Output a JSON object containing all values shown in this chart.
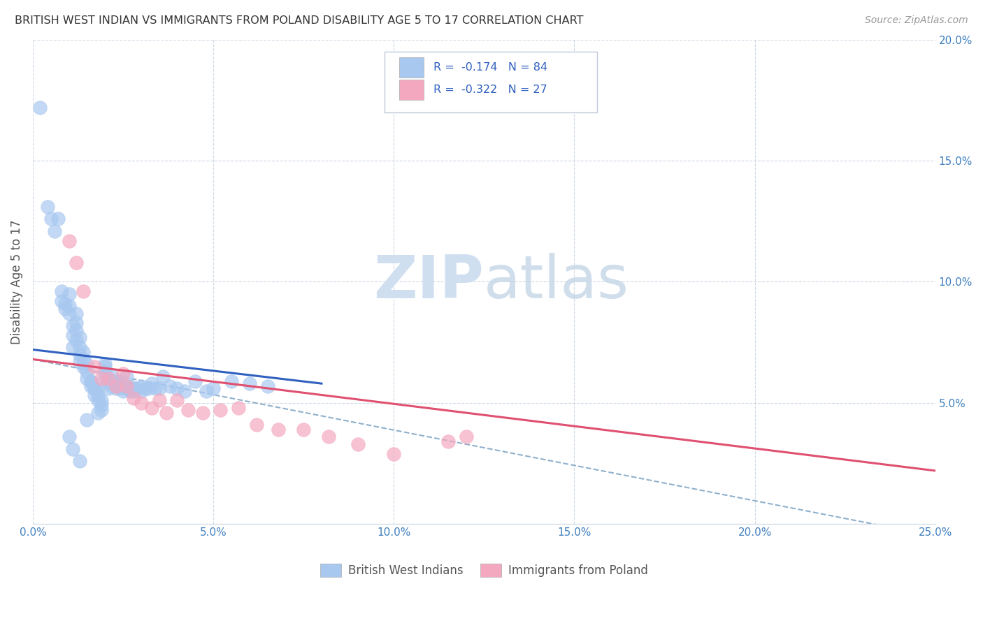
{
  "title": "BRITISH WEST INDIAN VS IMMIGRANTS FROM POLAND DISABILITY AGE 5 TO 17 CORRELATION CHART",
  "source": "Source: ZipAtlas.com",
  "ylabel": "Disability Age 5 to 17",
  "xlim": [
    0.0,
    0.25
  ],
  "ylim": [
    0.0,
    0.2
  ],
  "xticks": [
    0.0,
    0.05,
    0.1,
    0.15,
    0.2,
    0.25
  ],
  "yticks": [
    0.0,
    0.05,
    0.1,
    0.15,
    0.2
  ],
  "blue_R": -0.174,
  "blue_N": 84,
  "pink_R": -0.322,
  "pink_N": 27,
  "blue_color": "#A8C8F0",
  "pink_color": "#F4A8C0",
  "blue_line_color": "#3060C0",
  "pink_line_color": "#E05070",
  "dashed_line_color": "#90B0CC",
  "watermark_color": "#D0DFF0",
  "legend_label_blue": "British West Indians",
  "legend_label_pink": "Immigrants from Poland",
  "blue_scatter_x": [
    0.002,
    0.004,
    0.005,
    0.006,
    0.007,
    0.008,
    0.008,
    0.009,
    0.009,
    0.01,
    0.01,
    0.01,
    0.011,
    0.011,
    0.011,
    0.012,
    0.012,
    0.012,
    0.012,
    0.013,
    0.013,
    0.013,
    0.013,
    0.014,
    0.014,
    0.014,
    0.015,
    0.015,
    0.015,
    0.016,
    0.016,
    0.016,
    0.017,
    0.017,
    0.017,
    0.018,
    0.018,
    0.018,
    0.019,
    0.019,
    0.019,
    0.02,
    0.02,
    0.02,
    0.02,
    0.021,
    0.021,
    0.022,
    0.022,
    0.023,
    0.023,
    0.024,
    0.024,
    0.025,
    0.025,
    0.026,
    0.026,
    0.027,
    0.027,
    0.028,
    0.028,
    0.029,
    0.03,
    0.03,
    0.031,
    0.032,
    0.033,
    0.034,
    0.035,
    0.036,
    0.038,
    0.04,
    0.042,
    0.045,
    0.048,
    0.05,
    0.055,
    0.06,
    0.065,
    0.01,
    0.011,
    0.013,
    0.015,
    0.018
  ],
  "blue_scatter_y": [
    0.172,
    0.131,
    0.126,
    0.121,
    0.126,
    0.096,
    0.092,
    0.091,
    0.089,
    0.095,
    0.09,
    0.087,
    0.082,
    0.078,
    0.073,
    0.087,
    0.083,
    0.08,
    0.076,
    0.077,
    0.073,
    0.07,
    0.067,
    0.071,
    0.068,
    0.065,
    0.066,
    0.063,
    0.06,
    0.059,
    0.057,
    0.059,
    0.056,
    0.053,
    0.056,
    0.051,
    0.053,
    0.056,
    0.049,
    0.051,
    0.047,
    0.066,
    0.065,
    0.063,
    0.061,
    0.056,
    0.059,
    0.061,
    0.057,
    0.056,
    0.059,
    0.056,
    0.059,
    0.055,
    0.057,
    0.061,
    0.056,
    0.055,
    0.057,
    0.056,
    0.055,
    0.056,
    0.055,
    0.057,
    0.056,
    0.056,
    0.058,
    0.056,
    0.056,
    0.061,
    0.057,
    0.056,
    0.055,
    0.059,
    0.055,
    0.056,
    0.059,
    0.058,
    0.057,
    0.036,
    0.031,
    0.026,
    0.043,
    0.046
  ],
  "pink_scatter_x": [
    0.01,
    0.012,
    0.014,
    0.017,
    0.019,
    0.021,
    0.023,
    0.025,
    0.026,
    0.028,
    0.03,
    0.033,
    0.035,
    0.037,
    0.04,
    0.043,
    0.047,
    0.052,
    0.057,
    0.062,
    0.068,
    0.075,
    0.082,
    0.09,
    0.1,
    0.115,
    0.12
  ],
  "pink_scatter_y": [
    0.117,
    0.108,
    0.096,
    0.065,
    0.06,
    0.06,
    0.057,
    0.062,
    0.057,
    0.052,
    0.05,
    0.048,
    0.051,
    0.046,
    0.051,
    0.047,
    0.046,
    0.047,
    0.048,
    0.041,
    0.039,
    0.039,
    0.036,
    0.033,
    0.029,
    0.034,
    0.036
  ],
  "blue_trend_x": [
    0.0,
    0.08
  ],
  "blue_trend_y_start": 0.072,
  "blue_trend_y_end": 0.058,
  "pink_trend_x": [
    0.0,
    0.25
  ],
  "pink_trend_y_start": 0.068,
  "pink_trend_y_end": 0.022,
  "dashed_trend_x": [
    0.0,
    0.25
  ],
  "dashed_trend_y_start": 0.068,
  "dashed_trend_y_end": -0.005
}
